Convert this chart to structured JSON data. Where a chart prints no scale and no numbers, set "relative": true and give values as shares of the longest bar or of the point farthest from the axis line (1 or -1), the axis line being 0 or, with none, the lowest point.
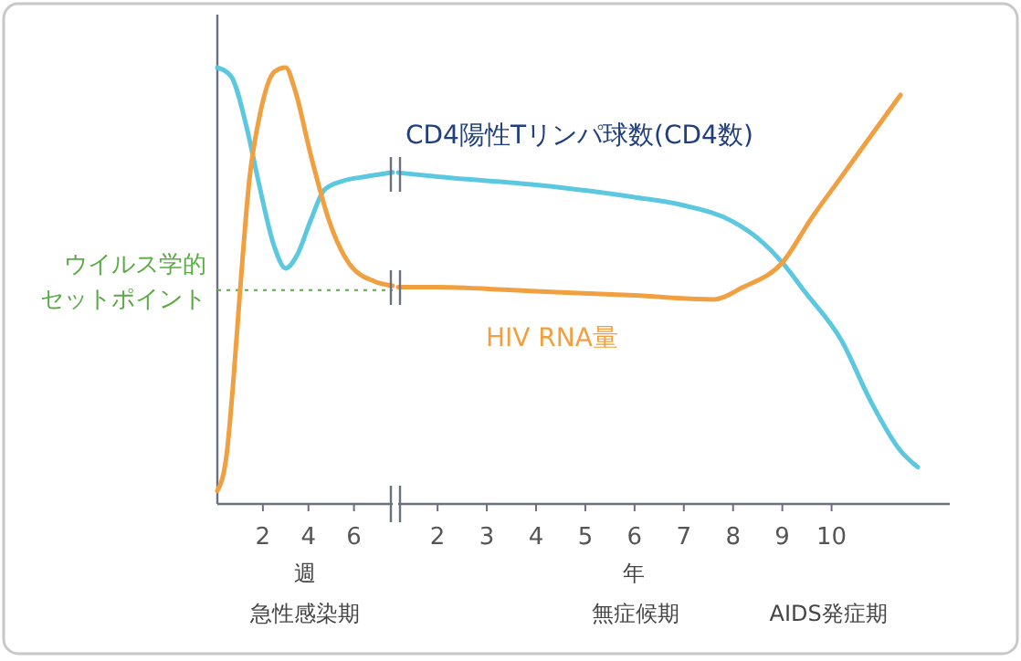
{
  "chart_data": [
    {
      "type": "line",
      "relative": true,
      "xlabel": "週",
      "xlim": [
        0,
        7.7
      ],
      "xticks": [
        2,
        4,
        6
      ],
      "grid": false,
      "marker": "none",
      "line_style": "solid",
      "annotations": [
        "急性感染期"
      ],
      "ref_lines": [
        {
          "axis": "y",
          "value": 0.49,
          "label": "ウイルス学的セットポイント",
          "color": "#5aaa46",
          "line_style": "dotted"
        }
      ],
      "series": [
        {
          "color": "#5bc8e0",
          "x": [
            0,
            0.6,
            1.3,
            1.8,
            2.5,
            3.0,
            3.5,
            4.1,
            4.7,
            5.5,
            6.5,
            7.7
          ],
          "values": [
            1.0,
            0.98,
            0.86,
            0.74,
            0.59,
            0.54,
            0.57,
            0.65,
            0.72,
            0.74,
            0.75,
            0.76
          ]
        },
        {
          "color": "#f0a040",
          "x": [
            0,
            0.4,
            0.7,
            1.0,
            1.4,
            1.9,
            2.5,
            3.0,
            3.4,
            4.1,
            4.9,
            5.8,
            6.9,
            7.7
          ],
          "values": [
            0.03,
            0.11,
            0.28,
            0.49,
            0.74,
            0.9,
            0.99,
            1.0,
            0.95,
            0.8,
            0.65,
            0.55,
            0.51,
            0.5
          ]
        }
      ]
    },
    {
      "type": "line",
      "relative": true,
      "xlabel": "年",
      "xlim": [
        1.2,
        12.4
      ],
      "xticks": [
        2,
        3,
        4,
        5,
        6,
        7,
        8,
        9,
        10
      ],
      "grid": false,
      "marker": "none",
      "line_style": "solid",
      "annotations": [
        "無症候期",
        "AIDS発症期"
      ],
      "series": [
        {
          "name": "CD4陽性Tリンパ球数(CD4数)",
          "color": "#5bc8e0",
          "x": [
            1.2,
            2,
            4,
            6,
            7,
            8,
            8.5,
            9,
            9.45,
            10.2,
            10.8,
            11.4,
            11.75
          ],
          "values": [
            0.81,
            0.8,
            0.78,
            0.75,
            0.73,
            0.69,
            0.65,
            0.59,
            0.52,
            0.4,
            0.25,
            0.13,
            0.09
          ]
        },
        {
          "name": "HIV RNA量",
          "color": "#f0a040",
          "x": [
            1.2,
            2,
            4,
            6,
            7.6,
            8.2,
            9,
            9.6,
            10.2,
            10.8,
            11.4
          ],
          "values": [
            0.53,
            0.53,
            0.52,
            0.51,
            0.5,
            0.53,
            0.59,
            0.7,
            0.8,
            0.9,
            1.0
          ]
        }
      ]
    }
  ]
}
